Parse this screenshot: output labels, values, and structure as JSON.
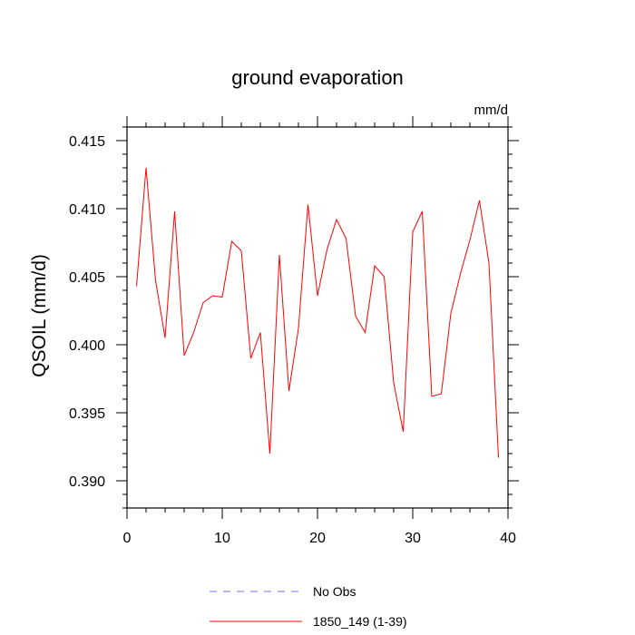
{
  "chart_data": {
    "type": "line",
    "title": "ground evaporation",
    "units": "mm/d",
    "ylabel": "QSOIL  (mm/d)",
    "xlabel": "",
    "xlim": [
      0,
      40
    ],
    "ylim": [
      0.388,
      0.416
    ],
    "x_ticks": [
      0,
      10,
      20,
      30,
      40
    ],
    "y_ticks": [
      0.39,
      0.395,
      0.4,
      0.405,
      0.41,
      0.415
    ],
    "y_tick_labels": [
      "0.390",
      "0.395",
      "0.400",
      "0.405",
      "0.410",
      "0.415"
    ],
    "grid": false,
    "legend_position": "bottom",
    "series": [
      {
        "name": "No Obs",
        "color": "#6f6fff",
        "dashed": true,
        "x": [],
        "values": []
      },
      {
        "name": "1850_149 (1-39)",
        "color": "#ff0000",
        "dashed": false,
        "x": [
          1,
          2,
          3,
          4,
          5,
          6,
          7,
          8,
          9,
          10,
          11,
          12,
          13,
          14,
          15,
          16,
          17,
          18,
          19,
          20,
          21,
          22,
          23,
          24,
          25,
          26,
          27,
          28,
          29,
          30,
          31,
          32,
          33,
          34,
          35,
          36,
          37,
          38,
          39
        ],
        "values": [
          0.4043,
          0.413,
          0.4047,
          0.4005,
          0.4098,
          0.3992,
          0.4009,
          0.4031,
          0.4036,
          0.4035,
          0.4076,
          0.4069,
          0.399,
          0.4009,
          0.392,
          0.4066,
          0.3966,
          0.4012,
          0.4103,
          0.4036,
          0.407,
          0.4092,
          0.4078,
          0.4021,
          0.4009,
          0.4058,
          0.405,
          0.3972,
          0.3936,
          0.4083,
          0.4098,
          0.3962,
          0.3964,
          0.4023,
          0.4052,
          0.4077,
          0.4106,
          0.406,
          0.3917
        ]
      }
    ]
  }
}
